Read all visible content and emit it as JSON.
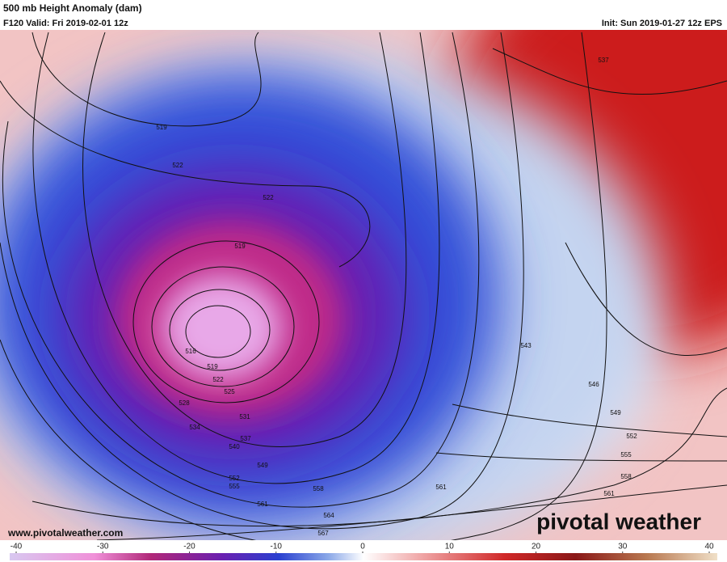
{
  "header": {
    "title": "500 mb Height Anomaly (dam)",
    "valid": "F120 Valid: Fri 2019-02-01 12z",
    "init": "Init: Sun 2019-01-27 12z EPS"
  },
  "contour_labels": [
    "519",
    "522",
    "522",
    "519",
    "516",
    "519",
    "522",
    "525",
    "528",
    "531",
    "534",
    "537",
    "540",
    "549",
    "552",
    "555",
    "558",
    "561",
    "564",
    "567",
    "561",
    "561",
    "558",
    "555",
    "552",
    "549",
    "546",
    "543",
    "537"
  ],
  "colorbar": {
    "range": [
      -40,
      40
    ],
    "ticks": [
      -40,
      -30,
      -20,
      -10,
      0,
      10,
      20,
      30,
      40
    ]
  },
  "footer": {
    "website": "www.pivotalweather.com",
    "logo": "pivotal weather"
  }
}
